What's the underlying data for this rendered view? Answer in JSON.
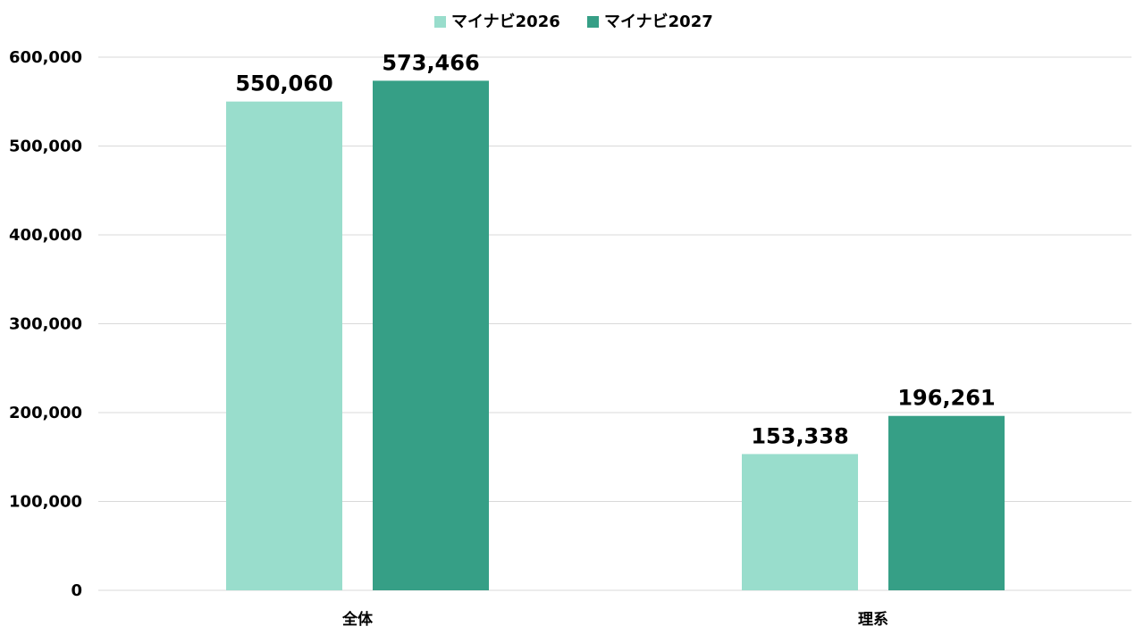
{
  "chart_data": {
    "type": "bar",
    "categories": [
      "全体",
      "理系"
    ],
    "series": [
      {
        "name": "マイナビ2026",
        "values": [
          550060,
          153338
        ],
        "color": "#99ddcc"
      },
      {
        "name": "マイナビ2027",
        "values": [
          573466,
          196261
        ],
        "color": "#369f86"
      }
    ],
    "y_tick_labels": [
      "0",
      "100,000",
      "200,000",
      "300,000",
      "400,000",
      "500,000",
      "600,000"
    ],
    "data_labels": [
      [
        "550,060",
        "153,338"
      ],
      [
        "573,466",
        "196,261"
      ]
    ],
    "ylim": [
      0,
      600000
    ],
    "y_step": 100000,
    "grid": true,
    "legend_position": "top-center",
    "gridline_color": "#d9d9d9"
  }
}
